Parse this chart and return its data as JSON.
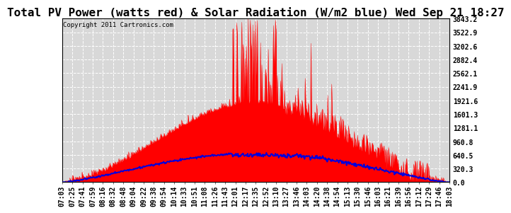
{
  "title": "Total PV Power (watts red) & Solar Radiation (W/m2 blue) Wed Sep 21 18:27",
  "copyright": "Copyright 2011 Cartronics.com",
  "ymin": 0.0,
  "ymax": 3843.2,
  "yticks": [
    0.0,
    320.3,
    640.5,
    960.8,
    1281.1,
    1601.3,
    1921.6,
    2241.9,
    2562.1,
    2882.4,
    3202.6,
    3522.9,
    3843.2
  ],
  "background_color": "#ffffff",
  "plot_bg_color": "#d8d8d8",
  "grid_color": "#ffffff",
  "red_color": "#ff0000",
  "blue_color": "#0000dd",
  "title_fontsize": 11.5,
  "copyright_fontsize": 6.5,
  "tick_fontsize": 7
}
